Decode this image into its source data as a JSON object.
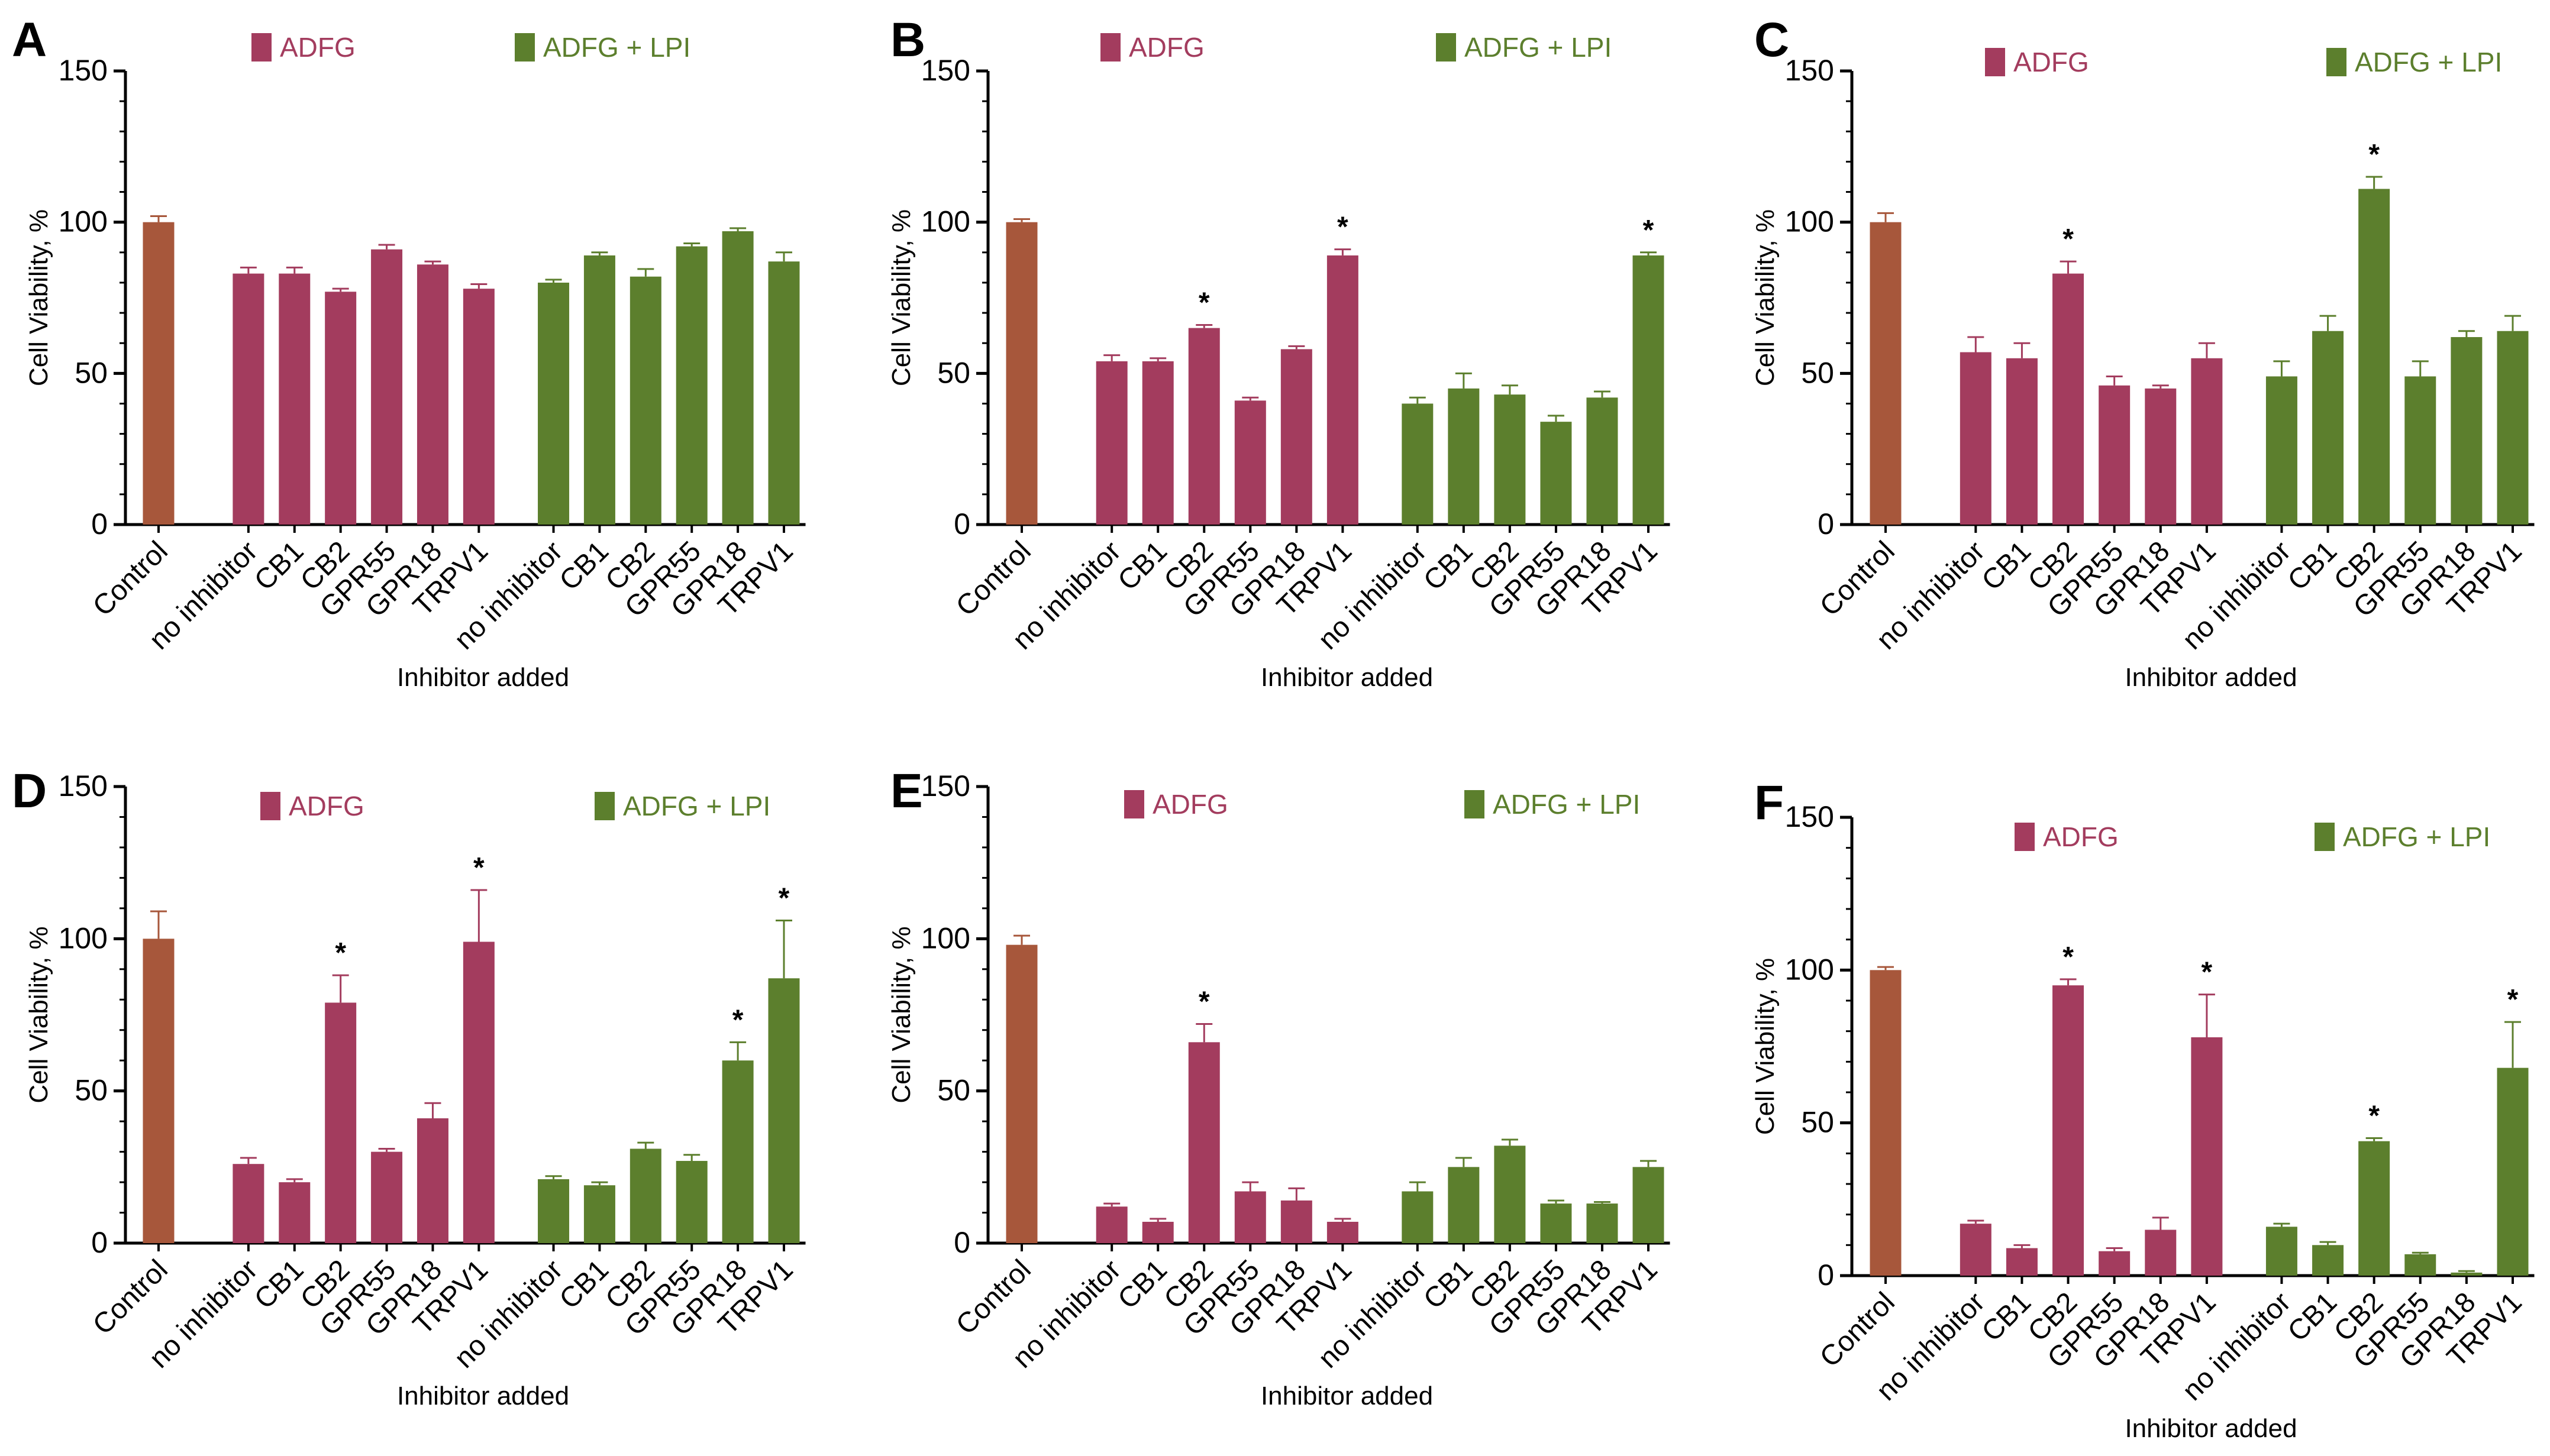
{
  "colors": {
    "control": "#a7573b",
    "adfg": "#a33c5e",
    "adfg_lpi": "#5c7f2d",
    "axis": "#000000",
    "text": "#000000"
  },
  "chart_data": [
    {
      "panel": "A",
      "type": "bar",
      "ylabel": "Cell Viability, %",
      "xlabel": "Inhibitor added",
      "ylim": [
        0,
        150
      ],
      "yticks": [
        "0",
        "50",
        "100",
        "150"
      ],
      "legend": [
        "ADFG",
        "ADFG + LPI"
      ],
      "categories": [
        "Control",
        "no inhibitor",
        "CB1",
        "CB2",
        "GPR55",
        "GPR18",
        "TRPV1",
        "no inhibitor",
        "CB1",
        "CB2",
        "GPR55",
        "GPR18",
        "TRPV1"
      ],
      "groups": [
        "control",
        "adfg",
        "adfg",
        "adfg",
        "adfg",
        "adfg",
        "adfg",
        "adfg_lpi",
        "adfg_lpi",
        "adfg_lpi",
        "adfg_lpi",
        "adfg_lpi",
        "adfg_lpi"
      ],
      "values": [
        100,
        83,
        83,
        77,
        91,
        86,
        78,
        80,
        89,
        82,
        92,
        97,
        87
      ],
      "errors": [
        2,
        2,
        2,
        1,
        1.5,
        1,
        1.5,
        1,
        1,
        2.5,
        1,
        1,
        3
      ],
      "significant": [
        false,
        false,
        false,
        false,
        false,
        false,
        false,
        false,
        false,
        false,
        false,
        false,
        false
      ],
      "star_label": "*"
    },
    {
      "panel": "B",
      "type": "bar",
      "ylabel": "Cell Viability, %",
      "xlabel": "Inhibitor added",
      "ylim": [
        0,
        150
      ],
      "yticks": [
        "0",
        "50",
        "100",
        "150"
      ],
      "legend": [
        "ADFG",
        "ADFG + LPI"
      ],
      "categories": [
        "Control",
        "no inhibitor",
        "CB1",
        "CB2",
        "GPR55",
        "GPR18",
        "TRPV1",
        "no inhibitor",
        "CB1",
        "CB2",
        "GPR55",
        "GPR18",
        "TRPV1"
      ],
      "groups": [
        "control",
        "adfg",
        "adfg",
        "adfg",
        "adfg",
        "adfg",
        "adfg",
        "adfg_lpi",
        "adfg_lpi",
        "adfg_lpi",
        "adfg_lpi",
        "adfg_lpi",
        "adfg_lpi"
      ],
      "values": [
        100,
        54,
        54,
        65,
        41,
        58,
        89,
        40,
        45,
        43,
        34,
        42,
        89
      ],
      "errors": [
        1,
        2,
        1,
        1,
        1,
        1,
        2,
        2,
        5,
        3,
        2,
        2,
        1
      ],
      "significant": [
        false,
        false,
        false,
        true,
        false,
        false,
        true,
        false,
        false,
        false,
        false,
        false,
        true
      ],
      "star_label": "*"
    },
    {
      "panel": "C",
      "type": "bar",
      "ylabel": "Cell Viability, %",
      "xlabel": "Inhibitor added",
      "ylim": [
        0,
        150
      ],
      "yticks": [
        "0",
        "50",
        "100",
        "150"
      ],
      "legend": [
        "ADFG",
        "ADFG + LPI"
      ],
      "categories": [
        "Control",
        "no inhibitor",
        "CB1",
        "CB2",
        "GPR55",
        "GPR18",
        "TRPV1",
        "no inhibitor",
        "CB1",
        "CB2",
        "GPR55",
        "GPR18",
        "TRPV1"
      ],
      "groups": [
        "control",
        "adfg",
        "adfg",
        "adfg",
        "adfg",
        "adfg",
        "adfg",
        "adfg_lpi",
        "adfg_lpi",
        "adfg_lpi",
        "adfg_lpi",
        "adfg_lpi",
        "adfg_lpi"
      ],
      "values": [
        100,
        57,
        55,
        83,
        46,
        45,
        55,
        49,
        64,
        111,
        49,
        62,
        64
      ],
      "errors": [
        3,
        5,
        5,
        4,
        3,
        1,
        5,
        5,
        5,
        4,
        5,
        2,
        5
      ],
      "significant": [
        false,
        false,
        false,
        true,
        false,
        false,
        false,
        false,
        false,
        true,
        false,
        false,
        false
      ],
      "star_label": "*"
    },
    {
      "panel": "D",
      "type": "bar",
      "ylabel": "Cell Viability, %",
      "xlabel": "Inhibitor added",
      "ylim": [
        0,
        150
      ],
      "yticks": [
        "0",
        "50",
        "100",
        "150"
      ],
      "legend": [
        "ADFG",
        "ADFG + LPI"
      ],
      "categories": [
        "Control",
        "no inhibitor",
        "CB1",
        "CB2",
        "GPR55",
        "GPR18",
        "TRPV1",
        "no inhibitor",
        "CB1",
        "CB2",
        "GPR55",
        "GPR18",
        "TRPV1"
      ],
      "groups": [
        "control",
        "adfg",
        "adfg",
        "adfg",
        "adfg",
        "adfg",
        "adfg",
        "adfg_lpi",
        "adfg_lpi",
        "adfg_lpi",
        "adfg_lpi",
        "adfg_lpi",
        "adfg_lpi"
      ],
      "values": [
        100,
        26,
        20,
        79,
        30,
        41,
        99,
        21,
        19,
        31,
        27,
        60,
        87
      ],
      "errors": [
        9,
        2,
        1,
        9,
        1,
        5,
        17,
        1,
        1,
        2,
        2,
        6,
        19
      ],
      "significant": [
        false,
        false,
        false,
        true,
        false,
        false,
        true,
        false,
        false,
        false,
        false,
        true,
        true
      ],
      "star_label": "*"
    },
    {
      "panel": "E",
      "type": "bar",
      "ylabel": "Cell Viability, %",
      "xlabel": "Inhibitor added",
      "ylim": [
        0,
        150
      ],
      "yticks": [
        "0",
        "50",
        "100",
        "150"
      ],
      "legend": [
        "ADFG",
        "ADFG + LPI"
      ],
      "categories": [
        "Control",
        "no inhibitor",
        "CB1",
        "CB2",
        "GPR55",
        "GPR18",
        "TRPV1",
        "no inhibitor",
        "CB1",
        "CB2",
        "GPR55",
        "GPR18",
        "TRPV1"
      ],
      "groups": [
        "control",
        "adfg",
        "adfg",
        "adfg",
        "adfg",
        "adfg",
        "adfg",
        "adfg_lpi",
        "adfg_lpi",
        "adfg_lpi",
        "adfg_lpi",
        "adfg_lpi",
        "adfg_lpi"
      ],
      "values": [
        98,
        12,
        7,
        66,
        17,
        14,
        7,
        17,
        25,
        32,
        13,
        13,
        25
      ],
      "errors": [
        3,
        1,
        1,
        6,
        3,
        4,
        1,
        3,
        3,
        2,
        1,
        0.5,
        2
      ],
      "significant": [
        false,
        false,
        false,
        true,
        false,
        false,
        false,
        false,
        false,
        false,
        false,
        false,
        false
      ],
      "star_label": "*"
    },
    {
      "panel": "F",
      "type": "bar",
      "ylabel": "Cell Viability, %",
      "xlabel": "Inhibitor added",
      "ylim": [
        0,
        150
      ],
      "yticks": [
        "0",
        "50",
        "100",
        "150"
      ],
      "legend": [
        "ADFG",
        "ADFG + LPI"
      ],
      "categories": [
        "Control",
        "no inhibitor",
        "CB1",
        "CB2",
        "GPR55",
        "GPR18",
        "TRPV1",
        "no inhibitor",
        "CB1",
        "CB2",
        "GPR55",
        "GPR18",
        "TRPV1"
      ],
      "groups": [
        "control",
        "adfg",
        "adfg",
        "adfg",
        "adfg",
        "adfg",
        "adfg",
        "adfg_lpi",
        "adfg_lpi",
        "adfg_lpi",
        "adfg_lpi",
        "adfg_lpi",
        "adfg_lpi"
      ],
      "values": [
        100,
        17,
        9,
        95,
        8,
        15,
        78,
        16,
        10,
        44,
        7,
        1,
        68
      ],
      "errors": [
        1,
        1,
        1,
        2,
        1,
        4,
        14,
        1,
        1,
        1,
        0.5,
        0.5,
        15
      ],
      "significant": [
        false,
        false,
        false,
        true,
        false,
        false,
        true,
        false,
        false,
        true,
        false,
        false,
        true
      ],
      "star_label": "*"
    }
  ]
}
